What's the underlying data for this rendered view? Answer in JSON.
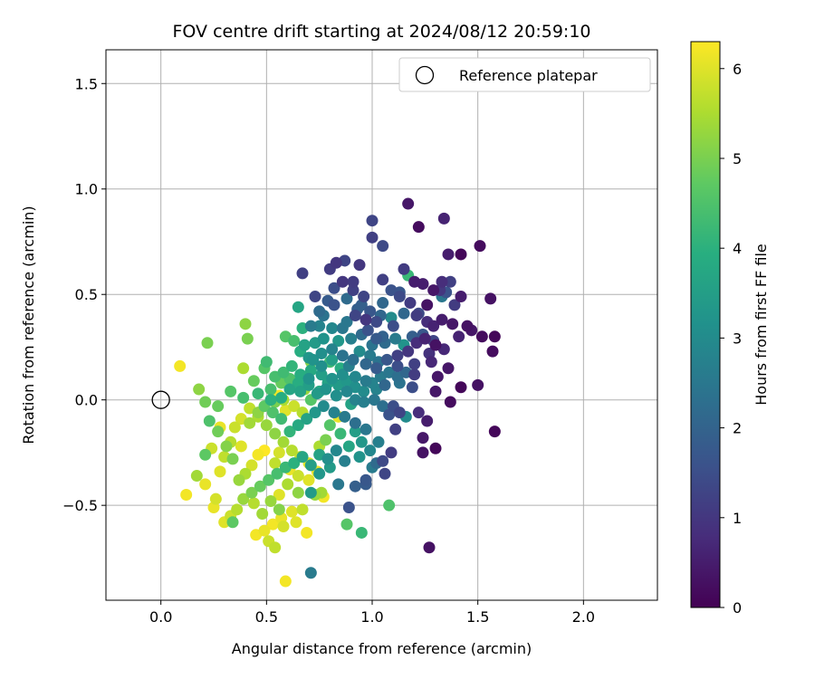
{
  "chart_data": {
    "type": "scatter",
    "title": "FOV centre drift starting at 2024/08/12 20:59:10",
    "xlabel": "Angular distance from reference (arcmin)",
    "ylabel": "Rotation from reference (arcmin)",
    "xlim": [
      -0.26,
      2.35
    ],
    "ylim": [
      -0.95,
      1.66
    ],
    "xticks": [
      0.0,
      0.5,
      1.0,
      1.5,
      2.0
    ],
    "xtick_labels": [
      "0.0",
      "0.5",
      "1.0",
      "1.5",
      "2.0"
    ],
    "yticks": [
      -0.5,
      0.0,
      0.5,
      1.0,
      1.5
    ],
    "ytick_labels": [
      "−0.5",
      "0.0",
      "0.5",
      "1.0",
      "1.5"
    ],
    "grid": true,
    "legend_position": "top-right",
    "legend": [
      {
        "label": "Reference platepar",
        "marker": "open-circle"
      }
    ],
    "reference_point": {
      "x": 0.0,
      "y": 0.0
    },
    "colorbar": {
      "label": "Hours from first FF file",
      "colormap": "viridis",
      "range": [
        0,
        6.3
      ],
      "ticks": [
        0,
        1,
        2,
        3,
        4,
        5,
        6
      ]
    },
    "points": [
      [
        1.17,
        0.93,
        0.4
      ],
      [
        1.22,
        0.82,
        0.2
      ],
      [
        1.34,
        0.86,
        0.6
      ],
      [
        1.0,
        0.85,
        1.3
      ],
      [
        1.0,
        0.77,
        1.2
      ],
      [
        1.05,
        0.73,
        1.4
      ],
      [
        1.51,
        0.73,
        0.2
      ],
      [
        1.42,
        0.69,
        0.1
      ],
      [
        1.36,
        0.69,
        0.5
      ],
      [
        1.15,
        0.62,
        1.1
      ],
      [
        1.17,
        0.59,
        4.2
      ],
      [
        1.05,
        0.57,
        1.2
      ],
      [
        0.67,
        0.6,
        1.2
      ],
      [
        0.87,
        0.66,
        1.3
      ],
      [
        0.83,
        0.65,
        1.0
      ],
      [
        0.8,
        0.62,
        1.1
      ],
      [
        0.94,
        0.64,
        1.0
      ],
      [
        1.33,
        0.56,
        0.8
      ],
      [
        1.37,
        0.56,
        1.2
      ],
      [
        1.24,
        0.55,
        0.5
      ],
      [
        1.2,
        0.56,
        0.5
      ],
      [
        1.29,
        0.52,
        0.4
      ],
      [
        1.33,
        0.49,
        2.5
      ],
      [
        1.35,
        0.51,
        1.6
      ],
      [
        1.42,
        0.49,
        0.5
      ],
      [
        1.56,
        0.48,
        0.3
      ],
      [
        1.09,
        0.52,
        1.6
      ],
      [
        1.13,
        0.51,
        1.7
      ],
      [
        1.05,
        0.46,
        2.1
      ],
      [
        0.95,
        0.45,
        1.9
      ],
      [
        0.86,
        0.56,
        1.0
      ],
      [
        0.91,
        0.52,
        1.2
      ],
      [
        0.73,
        0.49,
        1.3
      ],
      [
        0.88,
        0.48,
        2.2
      ],
      [
        0.82,
        0.45,
        1.6
      ],
      [
        0.65,
        0.44,
        3.7
      ],
      [
        0.77,
        0.4,
        2.4
      ],
      [
        0.71,
        0.35,
        2.6
      ],
      [
        0.75,
        0.35,
        2.8
      ],
      [
        0.92,
        0.4,
        1.3
      ],
      [
        0.97,
        0.38,
        1.0
      ],
      [
        1.02,
        0.37,
        1.4
      ],
      [
        1.1,
        0.35,
        1.5
      ],
      [
        1.15,
        0.41,
        2.1
      ],
      [
        1.21,
        0.4,
        1.1
      ],
      [
        1.26,
        0.37,
        0.8
      ],
      [
        1.29,
        0.35,
        0.6
      ],
      [
        1.33,
        0.38,
        0.5
      ],
      [
        1.38,
        0.36,
        0.4
      ],
      [
        1.45,
        0.35,
        0.3
      ],
      [
        1.52,
        0.3,
        0.2
      ],
      [
        1.58,
        0.3,
        0.1
      ],
      [
        1.57,
        0.23,
        0.2
      ],
      [
        1.3,
        0.26,
        0.3
      ],
      [
        1.25,
        0.29,
        0.6
      ],
      [
        1.21,
        0.27,
        0.8
      ],
      [
        1.17,
        0.23,
        1.0
      ],
      [
        1.12,
        0.21,
        1.2
      ],
      [
        1.05,
        0.3,
        2.0
      ],
      [
        1.0,
        0.26,
        2.4
      ],
      [
        0.95,
        0.31,
        2.2
      ],
      [
        0.9,
        0.29,
        2.7
      ],
      [
        0.86,
        0.34,
        2.5
      ],
      [
        0.81,
        0.34,
        2.9
      ],
      [
        0.77,
        0.29,
        3.2
      ],
      [
        0.73,
        0.27,
        3.4
      ],
      [
        0.68,
        0.26,
        3.6
      ],
      [
        0.66,
        0.23,
        3.9
      ],
      [
        0.7,
        0.2,
        3.3
      ],
      [
        0.76,
        0.22,
        3.1
      ],
      [
        0.81,
        0.24,
        2.8
      ],
      [
        0.86,
        0.21,
        2.4
      ],
      [
        0.91,
        0.19,
        2.3
      ],
      [
        0.97,
        0.17,
        2.1
      ],
      [
        1.02,
        0.15,
        1.8
      ],
      [
        1.07,
        0.19,
        1.7
      ],
      [
        1.12,
        0.16,
        1.5
      ],
      [
        1.2,
        0.17,
        1.2
      ],
      [
        1.28,
        0.18,
        0.7
      ],
      [
        1.36,
        0.15,
        0.4
      ],
      [
        1.31,
        0.11,
        0.4
      ],
      [
        1.42,
        0.06,
        0.1
      ],
      [
        1.5,
        0.07,
        0.3
      ],
      [
        1.37,
        -0.01,
        0.2
      ],
      [
        1.3,
        0.04,
        0.4
      ],
      [
        1.19,
        0.06,
        1.5
      ],
      [
        1.13,
        0.08,
        2.4
      ],
      [
        1.06,
        0.07,
        2.1
      ],
      [
        1.02,
        0.05,
        2.8
      ],
      [
        0.97,
        0.09,
        2.6
      ],
      [
        0.92,
        0.11,
        2.9
      ],
      [
        0.86,
        0.12,
        3.1
      ],
      [
        0.81,
        0.1,
        3.2
      ],
      [
        0.76,
        0.12,
        3.5
      ],
      [
        0.71,
        0.14,
        3.8
      ],
      [
        0.66,
        0.12,
        3.9
      ],
      [
        0.62,
        0.16,
        4.1
      ],
      [
        0.58,
        0.13,
        4.3
      ],
      [
        0.54,
        0.11,
        4.4
      ],
      [
        0.49,
        0.15,
        4.6
      ],
      [
        0.5,
        0.18,
        4.3
      ],
      [
        0.44,
        0.09,
        4.8
      ],
      [
        0.39,
        0.15,
        5.5
      ],
      [
        0.4,
        0.36,
        5.2
      ],
      [
        0.41,
        0.29,
        5.0
      ],
      [
        0.22,
        0.27,
        5.0
      ],
      [
        0.09,
        0.16,
        6.2
      ],
      [
        0.18,
        0.05,
        5.2
      ],
      [
        0.21,
        -0.01,
        4.9
      ],
      [
        0.27,
        -0.03,
        4.8
      ],
      [
        0.33,
        0.04,
        4.6
      ],
      [
        0.39,
        0.01,
        4.4
      ],
      [
        0.46,
        0.03,
        4.2
      ],
      [
        0.52,
        0.0,
        4.0
      ],
      [
        0.57,
        0.01,
        3.9
      ],
      [
        0.61,
        0.05,
        3.7
      ],
      [
        0.66,
        0.04,
        3.6
      ],
      [
        0.7,
        0.07,
        3.5
      ],
      [
        0.74,
        0.03,
        3.4
      ],
      [
        0.78,
        0.05,
        3.2
      ],
      [
        0.83,
        0.02,
        3.1
      ],
      [
        0.88,
        0.04,
        2.9
      ],
      [
        0.92,
        0.0,
        2.8
      ],
      [
        0.96,
        -0.01,
        2.7
      ],
      [
        1.01,
        0.0,
        2.5
      ],
      [
        1.05,
        -0.03,
        2.3
      ],
      [
        1.1,
        -0.03,
        1.5
      ],
      [
        1.13,
        -0.06,
        1.3
      ],
      [
        1.16,
        -0.08,
        3.0
      ],
      [
        1.22,
        -0.06,
        0.8
      ],
      [
        1.26,
        -0.1,
        0.5
      ],
      [
        1.58,
        -0.15,
        0.1
      ],
      [
        1.24,
        -0.18,
        0.4
      ],
      [
        1.24,
        -0.25,
        0.3
      ],
      [
        1.3,
        -0.23,
        0.1
      ],
      [
        1.09,
        -0.25,
        1.1
      ],
      [
        1.05,
        -0.29,
        1.4
      ],
      [
        1.06,
        -0.35,
        1.3
      ],
      [
        1.0,
        -0.32,
        2.6
      ],
      [
        0.97,
        -0.38,
        1.7
      ],
      [
        0.92,
        -0.41,
        1.9
      ],
      [
        0.89,
        -0.51,
        1.6
      ],
      [
        0.84,
        -0.4,
        2.5
      ],
      [
        0.87,
        -0.29,
        2.7
      ],
      [
        0.83,
        -0.24,
        2.9
      ],
      [
        0.79,
        -0.28,
        3.1
      ],
      [
        0.75,
        -0.35,
        3.3
      ],
      [
        0.71,
        -0.31,
        3.5
      ],
      [
        0.67,
        -0.27,
        3.7
      ],
      [
        0.63,
        -0.3,
        4.0
      ],
      [
        0.59,
        -0.32,
        4.2
      ],
      [
        0.55,
        -0.35,
        4.4
      ],
      [
        0.51,
        -0.38,
        4.6
      ],
      [
        0.47,
        -0.41,
        4.8
      ],
      [
        0.43,
        -0.44,
        5.0
      ],
      [
        0.39,
        -0.47,
        5.3
      ],
      [
        0.36,
        -0.52,
        5.6
      ],
      [
        0.33,
        -0.55,
        5.8
      ],
      [
        0.3,
        -0.58,
        6.0
      ],
      [
        0.26,
        -0.47,
        5.9
      ],
      [
        0.21,
        -0.4,
        6.1
      ],
      [
        0.17,
        -0.36,
        5.4
      ],
      [
        0.12,
        -0.45,
        6.2
      ],
      [
        0.25,
        -0.51,
        6.1
      ],
      [
        0.28,
        -0.34,
        6.0
      ],
      [
        0.3,
        -0.27,
        5.7
      ],
      [
        0.33,
        -0.2,
        5.6
      ],
      [
        0.35,
        -0.13,
        5.8
      ],
      [
        0.38,
        -0.09,
        5.9
      ],
      [
        0.42,
        -0.04,
        5.7
      ],
      [
        0.46,
        -0.08,
        5.5
      ],
      [
        0.5,
        -0.12,
        5.3
      ],
      [
        0.54,
        -0.16,
        5.2
      ],
      [
        0.58,
        -0.2,
        5.4
      ],
      [
        0.62,
        -0.24,
        5.6
      ],
      [
        0.66,
        -0.27,
        5.8
      ],
      [
        0.7,
        -0.3,
        6.0
      ],
      [
        0.74,
        -0.34,
        6.1
      ],
      [
        0.71,
        -0.44,
        3.4
      ],
      [
        0.76,
        -0.44,
        5.4
      ],
      [
        0.73,
        -0.45,
        5.3
      ],
      [
        0.77,
        -0.46,
        6.2
      ],
      [
        0.67,
        -0.52,
        5.7
      ],
      [
        0.62,
        -0.53,
        6.0
      ],
      [
        0.57,
        -0.56,
        6.1
      ],
      [
        0.53,
        -0.59,
        6.2
      ],
      [
        0.49,
        -0.62,
        6.1
      ],
      [
        0.45,
        -0.64,
        6.2
      ],
      [
        0.51,
        -0.67,
        5.8
      ],
      [
        0.54,
        -0.7,
        5.7
      ],
      [
        0.58,
        -0.6,
        5.9
      ],
      [
        0.64,
        -0.58,
        6.0
      ],
      [
        0.69,
        -0.63,
        6.2
      ],
      [
        0.59,
        -0.86,
        6.2
      ],
      [
        0.71,
        -0.82,
        2.6
      ],
      [
        0.88,
        -0.59,
        4.6
      ],
      [
        0.95,
        -0.63,
        4.2
      ],
      [
        1.08,
        -0.5,
        4.5
      ],
      [
        1.27,
        -0.7,
        0.3
      ],
      [
        0.65,
        -0.44,
        5.2
      ],
      [
        0.6,
        -0.4,
        5.5
      ],
      [
        0.54,
        -0.3,
        5.7
      ],
      [
        0.56,
        -0.45,
        6.0
      ],
      [
        0.46,
        -0.26,
        6.2
      ],
      [
        0.43,
        -0.31,
        5.9
      ],
      [
        0.4,
        -0.35,
        5.5
      ],
      [
        0.37,
        -0.38,
        5.3
      ],
      [
        0.34,
        -0.28,
        5.0
      ],
      [
        0.31,
        -0.22,
        5.1
      ],
      [
        0.27,
        -0.15,
        4.9
      ],
      [
        0.24,
        -0.23,
        5.8
      ],
      [
        0.21,
        -0.26,
        4.7
      ],
      [
        0.23,
        -0.1,
        4.5
      ],
      [
        0.28,
        -0.13,
        6.1
      ],
      [
        0.38,
        -0.22,
        6.0
      ],
      [
        0.49,
        -0.24,
        6.3
      ],
      [
        0.56,
        -0.25,
        5.9
      ],
      [
        0.61,
        -0.33,
        6.1
      ],
      [
        0.65,
        -0.36,
        5.8
      ],
      [
        0.7,
        -0.38,
        6.0
      ],
      [
        0.75,
        -0.22,
        5.5
      ],
      [
        0.78,
        -0.19,
        5.0
      ],
      [
        0.8,
        -0.12,
        4.6
      ],
      [
        0.85,
        -0.16,
        4.2
      ],
      [
        0.89,
        -0.22,
        3.7
      ],
      [
        0.94,
        -0.27,
        3.2
      ],
      [
        0.99,
        -0.24,
        2.9
      ],
      [
        1.03,
        -0.2,
        2.7
      ],
      [
        0.97,
        -0.14,
        2.5
      ],
      [
        0.92,
        -0.11,
        2.3
      ],
      [
        0.87,
        -0.08,
        2.6
      ],
      [
        0.82,
        -0.06,
        2.8
      ],
      [
        0.77,
        -0.03,
        3.0
      ],
      [
        0.73,
        -0.06,
        3.3
      ],
      [
        0.69,
        -0.09,
        3.6
      ],
      [
        0.65,
        -0.12,
        3.8
      ],
      [
        0.61,
        -0.15,
        4.1
      ],
      [
        0.57,
        -0.09,
        4.3
      ],
      [
        0.53,
        -0.06,
        4.5
      ],
      [
        0.49,
        -0.03,
        4.7
      ],
      [
        0.46,
        -0.06,
        5.2
      ],
      [
        0.42,
        -0.11,
        5.4
      ],
      [
        0.52,
        0.05,
        4.4
      ],
      [
        0.56,
        0.02,
        6.2
      ],
      [
        0.59,
        -0.05,
        6.0
      ],
      [
        0.63,
        -0.03,
        5.8
      ],
      [
        0.67,
        -0.06,
        5.6
      ],
      [
        0.71,
        0.0,
        4.6
      ],
      [
        0.75,
        0.04,
        3.8
      ],
      [
        0.79,
        0.08,
        3.6
      ],
      [
        0.84,
        0.07,
        3.4
      ],
      [
        0.88,
        0.09,
        3.3
      ],
      [
        0.92,
        0.06,
        3.1
      ],
      [
        0.96,
        0.04,
        3.0
      ],
      [
        1.0,
        0.08,
        2.8
      ],
      [
        1.04,
        0.11,
        2.6
      ],
      [
        1.08,
        0.13,
        2.5
      ],
      [
        1.12,
        0.11,
        2.3
      ],
      [
        1.16,
        0.13,
        2.1
      ],
      [
        0.84,
        -0.08,
        6.1
      ],
      [
        0.92,
        -0.15,
        3.5
      ],
      [
        0.95,
        -0.2,
        3.3
      ],
      [
        0.9,
        -0.02,
        3.6
      ],
      [
        0.85,
        0.15,
        3.9
      ],
      [
        0.8,
        0.18,
        4.3
      ],
      [
        0.76,
        0.16,
        3.1
      ],
      [
        0.72,
        0.19,
        3.2
      ],
      [
        0.84,
        0.28,
        3.3
      ],
      [
        0.88,
        0.37,
        2.5
      ],
      [
        0.93,
        0.43,
        1.9
      ],
      [
        0.98,
        0.33,
        1.6
      ],
      [
        1.02,
        0.29,
        1.8
      ],
      [
        1.06,
        0.27,
        2.2
      ],
      [
        1.11,
        0.29,
        2.6
      ],
      [
        1.15,
        0.26,
        3.2
      ],
      [
        1.19,
        0.3,
        1.9
      ],
      [
        1.24,
        0.31,
        1.7
      ],
      [
        1.29,
        0.28,
        1.3
      ],
      [
        1.22,
        0.41,
        1.4
      ],
      [
        1.18,
        0.46,
        1.1
      ],
      [
        1.13,
        0.49,
        1.4
      ],
      [
        1.09,
        0.39,
        3.0
      ],
      [
        1.04,
        0.4,
        2.1
      ],
      [
        0.99,
        0.42,
        1.7
      ],
      [
        0.96,
        0.49,
        1.3
      ],
      [
        0.91,
        0.56,
        1.1
      ],
      [
        0.82,
        0.53,
        1.5
      ],
      [
        0.79,
        0.47,
        1.8
      ],
      [
        0.75,
        0.42,
        2.2
      ],
      [
        0.94,
        0.23,
        3.0
      ],
      [
        0.99,
        0.21,
        2.6
      ],
      [
        1.03,
        0.18,
        2.4
      ],
      [
        0.89,
        0.16,
        2.7
      ],
      [
        0.81,
        0.19,
        3.5
      ],
      [
        0.7,
        0.1,
        3.2
      ],
      [
        0.65,
        0.08,
        3.9
      ],
      [
        0.61,
        0.1,
        4.5
      ],
      [
        0.57,
        0.08,
        4.8
      ],
      [
        0.54,
        -0.01,
        5.0
      ],
      [
        0.58,
        0.0,
        5.5
      ],
      [
        0.97,
        -0.4,
        1.8
      ],
      [
        1.02,
        -0.3,
        2.2
      ],
      [
        1.11,
        -0.14,
        1.2
      ],
      [
        1.08,
        -0.07,
        1.6
      ],
      [
        1.2,
        0.12,
        1.1
      ],
      [
        1.27,
        0.22,
        0.9
      ],
      [
        1.34,
        0.24,
        0.7
      ],
      [
        1.41,
        0.3,
        0.6
      ],
      [
        1.47,
        0.33,
        0.4
      ],
      [
        1.26,
        0.45,
        0.3
      ],
      [
        1.32,
        0.52,
        1.0
      ],
      [
        1.39,
        0.45,
        1.1
      ],
      [
        0.63,
        0.28,
        4.4
      ],
      [
        0.67,
        0.34,
        4.0
      ],
      [
        0.59,
        0.3,
        4.6
      ],
      [
        0.71,
        0.18,
        5.1
      ],
      [
        0.68,
        0.05,
        5.3
      ],
      [
        0.44,
        -0.49,
        5.6
      ],
      [
        0.48,
        -0.54,
        5.4
      ],
      [
        0.52,
        -0.48,
        5.3
      ],
      [
        0.56,
        -0.52,
        5.1
      ],
      [
        0.34,
        -0.58,
        4.7
      ],
      [
        0.8,
        -0.32,
        3.4
      ],
      [
        0.75,
        -0.26,
        3.6
      ]
    ]
  }
}
